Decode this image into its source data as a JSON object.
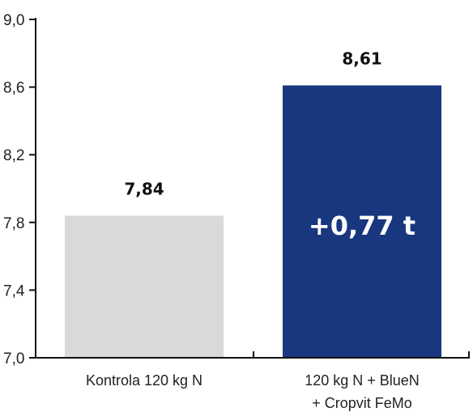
{
  "chart_data": {
    "type": "bar",
    "title": "",
    "xlabel": "",
    "ylabel": "",
    "ylim": [
      7.0,
      9.0
    ],
    "yticks": [
      {
        "value": 7.0,
        "label": "7,0"
      },
      {
        "value": 7.4,
        "label": "7,4"
      },
      {
        "value": 7.8,
        "label": "7,8"
      },
      {
        "value": 8.2,
        "label": "8,2"
      },
      {
        "value": 8.6,
        "label": "8,6"
      },
      {
        "value": 9.0,
        "label": "9,0"
      }
    ],
    "categories": [
      [
        "Kontrola 120 kg N"
      ],
      [
        "120 kg N + BlueN",
        "+ Cropvit FeMo"
      ]
    ],
    "values": [
      7.84,
      8.61
    ],
    "value_labels": [
      "7,84",
      "8,61"
    ],
    "bar_colors": [
      "#d9d9d9",
      "#18377e"
    ],
    "annotation": "+0,77 t",
    "grid": false,
    "legend": "none"
  }
}
